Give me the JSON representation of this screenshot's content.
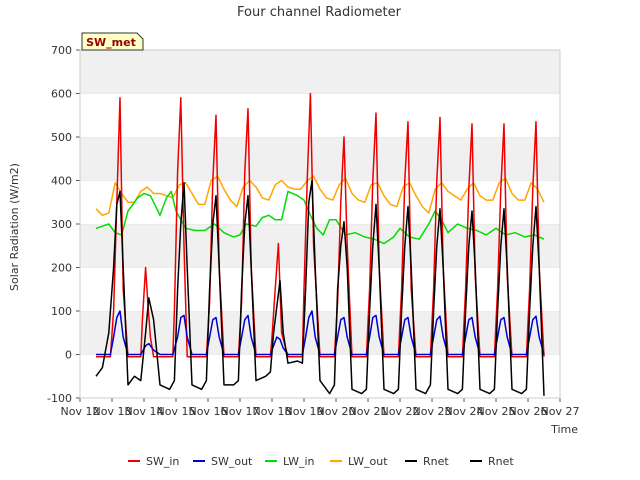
{
  "chart_data": {
    "type": "line",
    "title": "Four channel Radiometer",
    "xlabel": "Time",
    "ylabel": "Solar Radiation (W/m2)",
    "badge": "SW_met",
    "ylim": [
      -100,
      700
    ],
    "xlim": [
      12,
      27
    ],
    "x_ticks": [
      12,
      13,
      14,
      15,
      16,
      17,
      18,
      19,
      20,
      21,
      22,
      23,
      24,
      25,
      26,
      27
    ],
    "x_tick_labels": [
      "Nov 12",
      "Nov 13",
      "Nov 14",
      "Nov 15",
      "Nov 16",
      "Nov 17",
      "Nov 18",
      "Nov 19",
      "Nov 20",
      "Nov 21",
      "Nov 22",
      "Nov 23",
      "Nov 24",
      "Nov 25",
      "Nov 26",
      "Nov 27"
    ],
    "y_ticks": [
      -100,
      0,
      100,
      200,
      300,
      400,
      500,
      600,
      700
    ],
    "y_tick_labels": [
      "-100",
      "0",
      "100",
      "200",
      "300",
      "400",
      "500",
      "600",
      "700"
    ],
    "grid": "horizontal-bands",
    "legend_position": "bottom",
    "series": [
      {
        "name": "SW_in",
        "color": "#ee0000",
        "width": 1.5,
        "x": [
          12.5,
          12.95,
          13.05,
          13.15,
          13.25,
          13.35,
          13.5,
          13.9,
          13.95,
          14.05,
          14.12,
          14.2,
          14.3,
          14.5,
          14.9,
          14.95,
          15.05,
          15.15,
          15.25,
          15.35,
          15.5,
          15.95,
          16.05,
          16.15,
          16.25,
          16.35,
          16.5,
          16.95,
          17.05,
          17.15,
          17.25,
          17.35,
          17.5,
          17.95,
          18.0,
          18.1,
          18.2,
          18.3,
          18.5,
          18.95,
          19.0,
          19.1,
          19.2,
          19.3,
          19.5,
          19.95,
          20.05,
          20.15,
          20.25,
          20.35,
          20.5,
          20.95,
          21.05,
          21.15,
          21.25,
          21.35,
          21.5,
          21.95,
          22.05,
          22.15,
          22.25,
          22.35,
          22.5,
          22.95,
          23.05,
          23.15,
          23.25,
          23.35,
          23.5,
          23.95,
          24.05,
          24.15,
          24.25,
          24.35,
          24.5,
          24.95,
          25.05,
          25.15,
          25.25,
          25.35,
          25.5,
          25.95,
          26.05,
          26.15,
          26.25,
          26.35,
          26.5
        ],
        "y": [
          -5,
          -5,
          100,
          350,
          590,
          150,
          -5,
          -5,
          80,
          200,
          120,
          40,
          -5,
          -5,
          -5,
          100,
          420,
          590,
          250,
          -5,
          -5,
          -5,
          120,
          400,
          550,
          200,
          -5,
          -5,
          120,
          420,
          565,
          200,
          -5,
          -5,
          40,
          150,
          255,
          50,
          -5,
          -5,
          150,
          400,
          600,
          250,
          -5,
          -5,
          120,
          350,
          500,
          250,
          -5,
          -5,
          150,
          400,
          555,
          200,
          -5,
          -5,
          150,
          400,
          535,
          150,
          -5,
          -5,
          150,
          400,
          545,
          200,
          -5,
          -5,
          150,
          380,
          530,
          180,
          -5,
          -5,
          150,
          380,
          530,
          180,
          -5,
          -5,
          150,
          380,
          535,
          200,
          -5
        ]
      },
      {
        "name": "SW_out",
        "color": "#0000cc",
        "width": 1.5,
        "x": [
          12.5,
          12.95,
          13.05,
          13.15,
          13.25,
          13.35,
          13.5,
          13.9,
          14.05,
          14.15,
          14.3,
          14.5,
          14.9,
          15.05,
          15.15,
          15.25,
          15.35,
          15.5,
          15.95,
          16.05,
          16.15,
          16.25,
          16.35,
          16.5,
          16.95,
          17.05,
          17.15,
          17.25,
          17.35,
          17.5,
          17.95,
          18.05,
          18.15,
          18.25,
          18.35,
          18.5,
          18.95,
          19.05,
          19.15,
          19.25,
          19.35,
          19.5,
          19.95,
          20.05,
          20.15,
          20.25,
          20.35,
          20.5,
          20.95,
          21.05,
          21.15,
          21.25,
          21.35,
          21.5,
          21.95,
          22.05,
          22.15,
          22.25,
          22.35,
          22.5,
          22.95,
          23.05,
          23.15,
          23.25,
          23.35,
          23.5,
          23.95,
          24.05,
          24.15,
          24.25,
          24.35,
          24.5,
          24.95,
          25.05,
          25.15,
          25.25,
          25.35,
          25.5,
          25.95,
          26.05,
          26.15,
          26.25,
          26.35,
          26.5
        ],
        "y": [
          0,
          0,
          40,
          85,
          100,
          40,
          0,
          0,
          20,
          25,
          10,
          0,
          0,
          40,
          85,
          90,
          40,
          0,
          0,
          40,
          80,
          85,
          40,
          0,
          0,
          40,
          80,
          90,
          40,
          0,
          0,
          20,
          40,
          35,
          15,
          0,
          0,
          40,
          85,
          100,
          40,
          0,
          0,
          40,
          80,
          85,
          40,
          0,
          0,
          40,
          85,
          90,
          40,
          0,
          0,
          40,
          80,
          85,
          40,
          0,
          0,
          40,
          80,
          88,
          40,
          0,
          0,
          40,
          80,
          85,
          40,
          0,
          0,
          40,
          80,
          85,
          40,
          0,
          0,
          40,
          80,
          88,
          40,
          0
        ]
      },
      {
        "name": "LW_in",
        "color": "#00dd00",
        "width": 1.5,
        "x": [
          12.5,
          12.7,
          12.9,
          13.1,
          13.3,
          13.5,
          13.8,
          14.0,
          14.2,
          14.5,
          14.7,
          14.85,
          15.0,
          15.3,
          15.6,
          15.9,
          16.2,
          16.5,
          16.8,
          17.0,
          17.2,
          17.5,
          17.7,
          17.9,
          18.1,
          18.3,
          18.5,
          18.8,
          19.0,
          19.2,
          19.4,
          19.6,
          19.8,
          20.0,
          20.3,
          20.6,
          20.9,
          21.2,
          21.5,
          21.8,
          22.0,
          22.3,
          22.6,
          22.9,
          23.1,
          23.3,
          23.5,
          23.8,
          24.1,
          24.4,
          24.7,
          25.0,
          25.3,
          25.6,
          25.9,
          26.2,
          26.5
        ],
        "y": [
          290,
          295,
          300,
          280,
          275,
          330,
          360,
          370,
          365,
          320,
          360,
          375,
          330,
          290,
          285,
          285,
          300,
          280,
          270,
          275,
          300,
          295,
          315,
          320,
          310,
          310,
          375,
          365,
          355,
          320,
          290,
          275,
          310,
          310,
          275,
          280,
          270,
          265,
          255,
          270,
          290,
          270,
          265,
          300,
          330,
          310,
          280,
          300,
          290,
          285,
          275,
          290,
          275,
          280,
          270,
          275,
          265
        ]
      },
      {
        "name": "LW_out",
        "color": "#ffa500",
        "width": 1.5,
        "x": [
          12.5,
          12.7,
          12.9,
          13.1,
          13.3,
          13.5,
          13.7,
          13.9,
          14.1,
          14.3,
          14.5,
          14.7,
          14.9,
          15.1,
          15.3,
          15.5,
          15.7,
          15.9,
          16.1,
          16.3,
          16.5,
          16.7,
          16.9,
          17.1,
          17.3,
          17.5,
          17.7,
          17.9,
          18.1,
          18.3,
          18.5,
          18.7,
          18.9,
          19.1,
          19.3,
          19.5,
          19.7,
          19.9,
          20.1,
          20.3,
          20.5,
          20.7,
          20.9,
          21.1,
          21.3,
          21.5,
          21.7,
          21.9,
          22.1,
          22.3,
          22.5,
          22.7,
          22.9,
          23.1,
          23.3,
          23.5,
          23.7,
          23.9,
          24.1,
          24.3,
          24.5,
          24.7,
          24.9,
          25.1,
          25.3,
          25.5,
          25.7,
          25.9,
          26.1,
          26.3,
          26.5
        ],
        "y": [
          335,
          320,
          325,
          395,
          370,
          350,
          350,
          375,
          385,
          370,
          370,
          365,
          360,
          390,
          395,
          370,
          345,
          345,
          400,
          410,
          380,
          355,
          340,
          385,
          400,
          385,
          360,
          355,
          390,
          400,
          385,
          380,
          380,
          400,
          410,
          380,
          360,
          355,
          390,
          405,
          370,
          355,
          350,
          390,
          395,
          365,
          345,
          340,
          385,
          395,
          365,
          340,
          325,
          380,
          395,
          375,
          365,
          355,
          380,
          395,
          365,
          355,
          355,
          395,
          405,
          370,
          355,
          355,
          395,
          380,
          350
        ]
      },
      {
        "name": "Rnet",
        "color": "#000000",
        "width": 1.5,
        "x": [
          12.5,
          12.7,
          12.9,
          13.05,
          13.15,
          13.25,
          13.35,
          13.5,
          13.7,
          13.9,
          14.05,
          14.15,
          14.3,
          14.5,
          14.8,
          14.95,
          15.05,
          15.15,
          15.25,
          15.35,
          15.5,
          15.8,
          15.95,
          16.05,
          16.15,
          16.25,
          16.35,
          16.5,
          16.8,
          16.95,
          17.05,
          17.15,
          17.25,
          17.35,
          17.5,
          17.8,
          17.95,
          18.05,
          18.15,
          18.25,
          18.35,
          18.5,
          18.8,
          18.95,
          19.05,
          19.15,
          19.25,
          19.35,
          19.5,
          19.8,
          19.95,
          20.05,
          20.15,
          20.25,
          20.35,
          20.5,
          20.8,
          20.95,
          21.05,
          21.15,
          21.25,
          21.35,
          21.5,
          21.8,
          21.95,
          22.05,
          22.15,
          22.25,
          22.35,
          22.5,
          22.8,
          22.95,
          23.05,
          23.15,
          23.25,
          23.35,
          23.5,
          23.8,
          23.95,
          24.05,
          24.15,
          24.25,
          24.35,
          24.5,
          24.8,
          24.95,
          25.05,
          25.15,
          25.25,
          25.35,
          25.5,
          25.8,
          25.95,
          26.05,
          26.15,
          26.25,
          26.35,
          26.5
        ],
        "y": [
          -50,
          -30,
          50,
          200,
          345,
          375,
          200,
          -70,
          -50,
          -60,
          50,
          130,
          80,
          -70,
          -80,
          -60,
          150,
          300,
          395,
          200,
          -70,
          -80,
          -60,
          150,
          300,
          365,
          200,
          -70,
          -70,
          -60,
          150,
          300,
          365,
          200,
          -60,
          -50,
          -40,
          50,
          110,
          170,
          50,
          -20,
          -15,
          -20,
          150,
          350,
          400,
          200,
          -60,
          -90,
          -70,
          150,
          250,
          305,
          200,
          -80,
          -90,
          -80,
          100,
          250,
          345,
          200,
          -80,
          -90,
          -80,
          100,
          250,
          340,
          200,
          -80,
          -90,
          -70,
          100,
          250,
          335,
          200,
          -80,
          -90,
          -80,
          100,
          250,
          330,
          200,
          -80,
          -90,
          -80,
          100,
          250,
          335,
          200,
          -80,
          -90,
          -80,
          100,
          250,
          340,
          200,
          -95
        ]
      }
    ]
  }
}
